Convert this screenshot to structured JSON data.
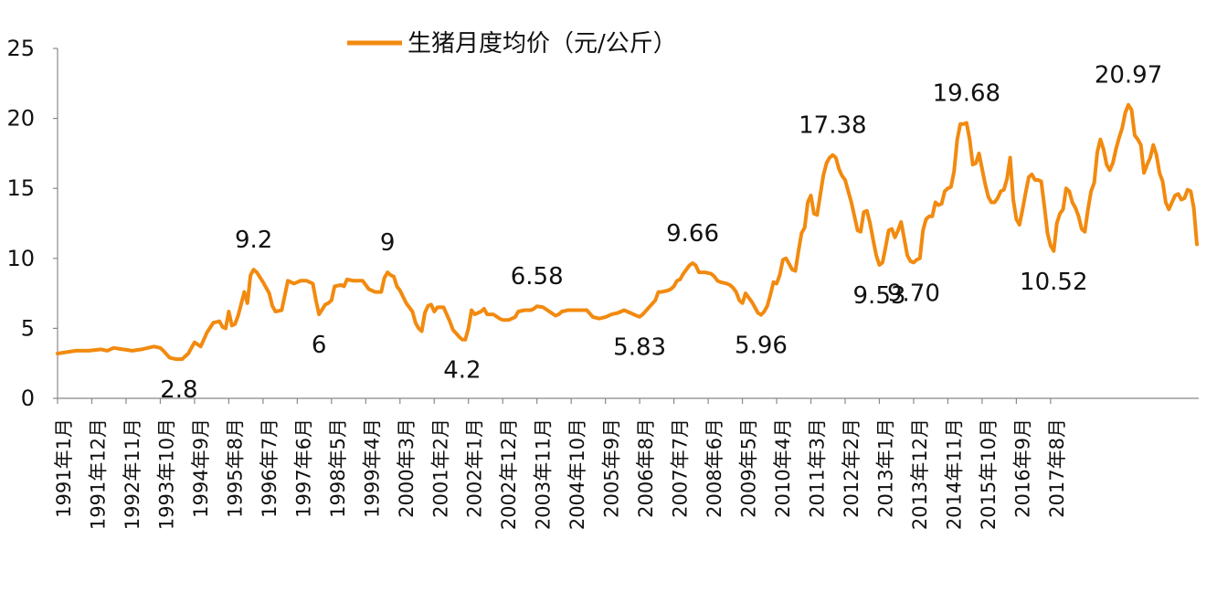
{
  "chart_data": {
    "type": "line",
    "title": "",
    "xlabel": "",
    "ylabel": "",
    "ylim": [
      0,
      25
    ],
    "y_ticks": [
      0,
      5,
      10,
      15,
      20,
      25
    ],
    "legend": {
      "position": "top",
      "label": "生猪月度均价（元/公斤）"
    },
    "x_tick_labels": [
      "1991年1月",
      "1991年12月",
      "1992年11月",
      "1993年10月",
      "1994年9月",
      "1995年8月",
      "1996年7月",
      "1997年6月",
      "1998年5月",
      "1999年4月",
      "2000年3月",
      "2001年2月",
      "2002年1月",
      "2002年12月",
      "2003年11月",
      "2004年10月",
      "2005年9月",
      "2006年8月",
      "2007年7月",
      "2008年6月",
      "2009年5月",
      "2010年4月",
      "2011年3月",
      "2012年2月",
      "2013年1月",
      "2013年12月",
      "2014年11月",
      "2015年10月",
      "2016年9月",
      "2017年8月"
    ],
    "x_tick_interval_months": 11,
    "x_start": "1991年1月",
    "x_end": "2018年3月",
    "series": [
      {
        "name": "生猪月度均价（元/公斤）",
        "color": "#F28A0F",
        "points": [
          [
            0,
            3.2
          ],
          [
            3,
            3.3
          ],
          [
            6,
            3.4
          ],
          [
            10,
            3.4
          ],
          [
            14,
            3.5
          ],
          [
            16,
            3.4
          ],
          [
            18,
            3.6
          ],
          [
            21,
            3.5
          ],
          [
            24,
            3.4
          ],
          [
            27,
            3.5
          ],
          [
            29,
            3.6
          ],
          [
            31,
            3.7
          ],
          [
            33,
            3.6
          ],
          [
            34,
            3.4
          ],
          [
            36,
            2.9
          ],
          [
            38,
            2.8
          ],
          [
            40,
            2.8
          ],
          [
            42,
            3.2
          ],
          [
            43,
            3.6
          ],
          [
            44,
            4.0
          ],
          [
            46,
            3.7
          ],
          [
            48,
            4.7
          ],
          [
            50,
            5.4
          ],
          [
            52,
            5.5
          ],
          [
            53,
            5.1
          ],
          [
            54,
            5.0
          ],
          [
            55,
            6.2
          ],
          [
            56,
            5.2
          ],
          [
            57,
            5.3
          ],
          [
            58,
            5.9
          ],
          [
            60,
            7.6
          ],
          [
            61,
            6.8
          ],
          [
            62,
            8.8
          ],
          [
            63,
            9.2
          ],
          [
            64,
            9.0
          ],
          [
            66,
            8.3
          ],
          [
            68,
            7.5
          ],
          [
            69,
            6.6
          ],
          [
            70,
            6.2
          ],
          [
            72,
            6.3
          ],
          [
            74,
            8.4
          ],
          [
            76,
            8.2
          ],
          [
            78,
            8.4
          ],
          [
            80,
            8.4
          ],
          [
            82,
            8.2
          ],
          [
            83,
            7.0
          ],
          [
            84,
            6.0
          ],
          [
            86,
            6.7
          ],
          [
            87,
            6.8
          ],
          [
            88,
            7.0
          ],
          [
            89,
            8.0
          ],
          [
            91,
            8.1
          ],
          [
            92,
            8.0
          ],
          [
            93,
            8.5
          ],
          [
            95,
            8.4
          ],
          [
            97,
            8.4
          ],
          [
            98,
            8.4
          ],
          [
            100,
            7.8
          ],
          [
            102,
            7.6
          ],
          [
            104,
            7.6
          ],
          [
            105,
            8.6
          ],
          [
            106,
            9.0
          ],
          [
            107,
            8.8
          ],
          [
            108,
            8.7
          ],
          [
            109,
            8.0
          ],
          [
            110,
            7.7
          ],
          [
            112,
            6.8
          ],
          [
            114,
            6.2
          ],
          [
            115,
            5.4
          ],
          [
            116,
            5.0
          ],
          [
            117,
            4.8
          ],
          [
            118,
            6.1
          ],
          [
            119,
            6.6
          ],
          [
            120,
            6.7
          ],
          [
            121,
            6.2
          ],
          [
            122,
            6.5
          ],
          [
            124,
            6.5
          ],
          [
            125,
            6.0
          ],
          [
            126,
            5.5
          ],
          [
            127,
            4.9
          ],
          [
            129,
            4.4
          ],
          [
            130,
            4.2
          ],
          [
            131,
            4.2
          ],
          [
            132,
            5.0
          ],
          [
            133,
            6.3
          ],
          [
            134,
            6.0
          ],
          [
            136,
            6.2
          ],
          [
            137,
            6.4
          ],
          [
            138,
            6.0
          ],
          [
            140,
            6.0
          ],
          [
            142,
            5.7
          ],
          [
            143,
            5.6
          ],
          [
            145,
            5.6
          ],
          [
            146,
            5.7
          ],
          [
            147,
            5.8
          ],
          [
            148,
            6.2
          ],
          [
            150,
            6.3
          ],
          [
            152,
            6.3
          ],
          [
            153,
            6.4
          ],
          [
            154,
            6.58
          ],
          [
            156,
            6.5
          ],
          [
            158,
            6.2
          ],
          [
            160,
            5.9
          ],
          [
            161,
            6.0
          ],
          [
            162,
            6.2
          ],
          [
            164,
            6.3
          ],
          [
            166,
            6.3
          ],
          [
            168,
            6.3
          ],
          [
            170,
            6.3
          ],
          [
            172,
            5.8
          ],
          [
            174,
            5.7
          ],
          [
            176,
            5.8
          ],
          [
            178,
            6.0
          ],
          [
            180,
            6.1
          ],
          [
            182,
            6.3
          ],
          [
            184,
            6.1
          ],
          [
            186,
            5.9
          ],
          [
            187,
            5.83
          ],
          [
            188,
            6.0
          ],
          [
            190,
            6.5
          ],
          [
            192,
            7.0
          ],
          [
            193,
            7.6
          ],
          [
            194,
            7.6
          ],
          [
            196,
            7.7
          ],
          [
            197,
            7.8
          ],
          [
            198,
            8.0
          ],
          [
            199,
            8.4
          ],
          [
            200,
            8.5
          ],
          [
            201,
            8.9
          ],
          [
            202,
            9.2
          ],
          [
            203,
            9.5
          ],
          [
            204,
            9.66
          ],
          [
            205,
            9.5
          ],
          [
            206,
            9.0
          ],
          [
            208,
            9.0
          ],
          [
            210,
            8.9
          ],
          [
            211,
            8.7
          ],
          [
            212,
            8.4
          ],
          [
            213,
            8.3
          ],
          [
            215,
            8.2
          ],
          [
            216,
            8.1
          ],
          [
            217,
            7.9
          ],
          [
            218,
            7.6
          ],
          [
            219,
            7.0
          ],
          [
            220,
            6.8
          ],
          [
            221,
            7.5
          ],
          [
            222,
            7.2
          ],
          [
            223,
            6.9
          ],
          [
            224,
            6.5
          ],
          [
            225,
            6.1
          ],
          [
            226,
            5.96
          ],
          [
            227,
            6.2
          ],
          [
            228,
            6.6
          ],
          [
            229,
            7.4
          ],
          [
            230,
            8.3
          ],
          [
            231,
            8.2
          ],
          [
            232,
            8.8
          ],
          [
            233,
            9.9
          ],
          [
            234,
            10.0
          ],
          [
            235,
            9.6
          ],
          [
            236,
            9.2
          ],
          [
            237,
            9.1
          ],
          [
            238,
            10.5
          ],
          [
            239,
            11.8
          ],
          [
            240,
            12.2
          ],
          [
            241,
            14.0
          ],
          [
            242,
            14.5
          ],
          [
            243,
            13.2
          ],
          [
            244,
            13.1
          ],
          [
            245,
            14.5
          ],
          [
            246,
            15.9
          ],
          [
            247,
            16.8
          ],
          [
            248,
            17.2
          ],
          [
            249,
            17.38
          ],
          [
            250,
            17.2
          ],
          [
            251,
            16.4
          ],
          [
            252,
            15.9
          ],
          [
            253,
            15.6
          ],
          [
            254,
            14.8
          ],
          [
            255,
            14.0
          ],
          [
            256,
            13.0
          ],
          [
            257,
            12.0
          ],
          [
            258,
            11.9
          ],
          [
            259,
            13.3
          ],
          [
            260,
            13.4
          ],
          [
            261,
            12.5
          ],
          [
            262,
            11.3
          ],
          [
            263,
            10.2
          ],
          [
            264,
            9.53
          ],
          [
            265,
            9.7
          ],
          [
            266,
            10.8
          ],
          [
            267,
            12.0
          ],
          [
            268,
            12.1
          ],
          [
            269,
            11.5
          ],
          [
            270,
            12.0
          ],
          [
            271,
            12.6
          ],
          [
            272,
            11.4
          ],
          [
            273,
            10.2
          ],
          [
            274,
            9.8
          ],
          [
            275,
            9.7
          ],
          [
            276,
            9.9
          ],
          [
            277,
            10.0
          ],
          [
            278,
            12.0
          ],
          [
            279,
            12.8
          ],
          [
            280,
            13.0
          ],
          [
            281,
            13.0
          ],
          [
            282,
            14.0
          ],
          [
            283,
            13.8
          ],
          [
            284,
            13.9
          ],
          [
            285,
            14.8
          ],
          [
            286,
            15.0
          ],
          [
            287,
            15.1
          ],
          [
            288,
            16.2
          ],
          [
            289,
            18.5
          ],
          [
            290,
            19.6
          ],
          [
            291,
            19.6
          ],
          [
            292,
            19.68
          ],
          [
            293,
            18.5
          ],
          [
            294,
            16.7
          ],
          [
            295,
            16.8
          ],
          [
            296,
            17.5
          ],
          [
            297,
            16.4
          ],
          [
            298,
            15.3
          ],
          [
            299,
            14.4
          ],
          [
            300,
            14.0
          ],
          [
            301,
            14.0
          ],
          [
            302,
            14.3
          ],
          [
            303,
            14.8
          ],
          [
            304,
            14.9
          ],
          [
            305,
            15.7
          ],
          [
            306,
            17.2
          ],
          [
            307,
            14.2
          ],
          [
            308,
            12.8
          ],
          [
            309,
            12.4
          ],
          [
            310,
            13.5
          ],
          [
            311,
            14.7
          ],
          [
            312,
            15.8
          ],
          [
            313,
            16.0
          ],
          [
            314,
            15.6
          ],
          [
            315,
            15.6
          ],
          [
            316,
            15.5
          ],
          [
            317,
            13.7
          ],
          [
            318,
            11.8
          ],
          [
            319,
            10.9
          ],
          [
            320,
            10.52
          ],
          [
            321,
            12.5
          ],
          [
            322,
            13.2
          ],
          [
            323,
            13.5
          ],
          [
            324,
            15.0
          ],
          [
            325,
            14.8
          ],
          [
            326,
            14.0
          ],
          [
            327,
            13.6
          ],
          [
            328,
            13.0
          ],
          [
            329,
            12.1
          ],
          [
            330,
            11.9
          ],
          [
            331,
            13.5
          ],
          [
            332,
            14.8
          ],
          [
            333,
            15.4
          ],
          [
            334,
            17.6
          ],
          [
            335,
            18.5
          ],
          [
            336,
            17.8
          ],
          [
            337,
            16.7
          ],
          [
            338,
            16.3
          ],
          [
            339,
            16.8
          ],
          [
            340,
            17.8
          ],
          [
            341,
            18.6
          ],
          [
            342,
            19.3
          ],
          [
            343,
            20.4
          ],
          [
            344,
            20.97
          ],
          [
            345,
            20.6
          ],
          [
            346,
            18.8
          ],
          [
            347,
            18.5
          ],
          [
            348,
            18.1
          ],
          [
            349,
            16.1
          ],
          [
            350,
            16.7
          ],
          [
            351,
            17.2
          ],
          [
            352,
            18.1
          ],
          [
            353,
            17.4
          ],
          [
            354,
            16.1
          ],
          [
            355,
            15.5
          ],
          [
            356,
            14.0
          ],
          [
            357,
            13.5
          ],
          [
            358,
            14.0
          ],
          [
            359,
            14.5
          ],
          [
            360,
            14.6
          ],
          [
            361,
            14.2
          ],
          [
            362,
            14.3
          ],
          [
            363,
            14.9
          ],
          [
            364,
            14.8
          ],
          [
            365,
            13.6
          ],
          [
            366,
            11.0
          ]
        ]
      }
    ],
    "annotations": [
      {
        "label": "2.8",
        "x": 39,
        "y": 2.8
      },
      {
        "label": "9.2",
        "x": 63,
        "y": 9.2
      },
      {
        "label": "6",
        "x": 84,
        "y": 6.0
      },
      {
        "label": "9",
        "x": 106,
        "y": 9.0
      },
      {
        "label": "4.2",
        "x": 130,
        "y": 4.2
      },
      {
        "label": "6.58",
        "x": 154,
        "y": 6.58
      },
      {
        "label": "5.83",
        "x": 187,
        "y": 5.83
      },
      {
        "label": "9.66",
        "x": 204,
        "y": 9.66
      },
      {
        "label": "5.96",
        "x": 226,
        "y": 5.96
      },
      {
        "label": "17.38",
        "x": 249,
        "y": 17.38
      },
      {
        "label": "9.53",
        "x": 264,
        "y": 9.53
      },
      {
        "label": "9.70",
        "x": 275,
        "y": 9.7
      },
      {
        "label": "19.68",
        "x": 292,
        "y": 19.68
      },
      {
        "label": "10.52",
        "x": 320,
        "y": 10.52
      },
      {
        "label": "20.97",
        "x": 344,
        "y": 20.97
      }
    ]
  }
}
